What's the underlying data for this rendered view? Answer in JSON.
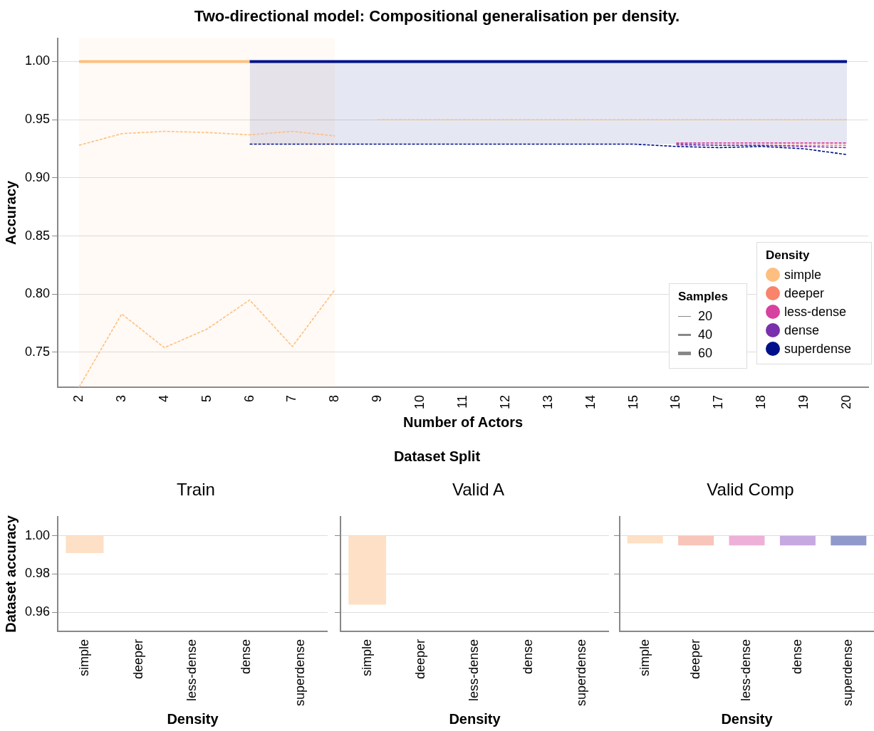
{
  "chart_data": [
    {
      "type": "line",
      "title": "Two-directional model: Compositional generalisation per density.",
      "xlabel": "Number of Actors",
      "ylabel": "Accuracy",
      "legend_title": "Density",
      "legend": "bottom right",
      "grid": "y",
      "marker": "none",
      "xlim": [
        1.5,
        20.5
      ],
      "xticks": [
        2,
        3,
        4,
        5,
        6,
        7,
        8,
        9,
        10,
        11,
        12,
        13,
        14,
        15,
        16,
        17,
        18,
        19,
        20
      ],
      "ylim": [
        0.72,
        1.02
      ],
      "yticks": [
        {
          "value": 0.75,
          "label": "0.75"
        },
        {
          "value": 0.8,
          "label": "0.80"
        },
        {
          "value": 0.85,
          "label": "0.85"
        },
        {
          "value": 0.9,
          "label": "0.90"
        },
        {
          "value": 0.95,
          "label": "0.95"
        },
        {
          "value": 1,
          "label": "1.00"
        }
      ],
      "bands": [
        {
          "axis": "x",
          "from": 2,
          "to": 8,
          "color": "#fdbf80"
        }
      ],
      "annotations": [
        "Samples",
        "20",
        "40",
        "60"
      ],
      "series": [
        {
          "name": "simple",
          "color": "#fdbf80",
          "line_style": "solid",
          "x": [
            2,
            3,
            4,
            5,
            6
          ],
          "values": [
            1,
            1,
            1,
            1,
            1
          ]
        },
        {
          "color": "#fdbf80",
          "line_style": "dashed",
          "x": [
            2,
            3,
            4,
            5,
            6,
            7,
            8
          ],
          "values": [
            0.928,
            0.938,
            0.94,
            0.939,
            0.937,
            0.94,
            0.936
          ]
        },
        {
          "color": "#fdbf80",
          "line_style": "dashed",
          "x": [
            9,
            10,
            11,
            12,
            13,
            14,
            15,
            16,
            17,
            18,
            19,
            20
          ],
          "values": [
            0.95,
            0.95,
            0.95,
            0.95,
            0.95,
            0.95,
            0.95,
            0.95,
            0.95,
            0.95,
            0.95,
            0.95
          ]
        },
        {
          "color": "#fdbf80",
          "line_style": "dashed",
          "x": [
            2,
            3,
            4,
            5,
            6,
            7,
            8
          ],
          "values": [
            0.72,
            0.783,
            0.754,
            0.77,
            0.795,
            0.755,
            0.804
          ]
        },
        {
          "name": "deeper",
          "color": "#f8846b",
          "line_style": "dashed",
          "x": [
            16,
            17,
            18,
            19,
            20
          ],
          "values": [
            0.928,
            0.928,
            0.928,
            0.928,
            0.928
          ]
        },
        {
          "name": "less-dense",
          "color": "#d6429f",
          "line_style": "dashed",
          "x": [
            16,
            17,
            18,
            19,
            20
          ],
          "values": [
            0.93,
            0.93,
            0.93,
            0.93,
            0.93
          ]
        },
        {
          "name": "dense",
          "color": "#7a2fac",
          "line_style": "dashed",
          "x": [
            16,
            17,
            18,
            19,
            20
          ],
          "values": [
            0.929,
            0.928,
            0.928,
            0.927,
            0.926
          ]
        },
        {
          "color": "#00108a",
          "line_style": "dashed",
          "x": [
            6,
            7,
            8,
            9,
            10,
            11,
            12,
            13,
            14,
            15,
            16,
            17,
            18,
            19,
            20
          ],
          "values": [
            0.929,
            0.929,
            0.929,
            0.929,
            0.929,
            0.929,
            0.929,
            0.929,
            0.929,
            0.929,
            0.927,
            0.926,
            0.927,
            0.925,
            0.92
          ]
        },
        {
          "name": "superdense",
          "color": "#00108a",
          "line_style": "solid",
          "x": [
            6,
            7,
            8,
            9,
            10,
            11,
            12,
            13,
            14,
            15,
            16,
            17,
            18,
            19,
            20
          ],
          "values": [
            1,
            1,
            1,
            1,
            1,
            1,
            1,
            1,
            1,
            1,
            1,
            1,
            1,
            1,
            1
          ],
          "lower": [
            0.929,
            0.929,
            0.929,
            0.929,
            0.929,
            0.929,
            0.929,
            0.929,
            0.929,
            0.929,
            0.929,
            0.929,
            0.929,
            0.929,
            0.929
          ],
          "upper": [
            1,
            1,
            1,
            1,
            1,
            1,
            1,
            1,
            1,
            1,
            1,
            1,
            1,
            1,
            1
          ]
        }
      ]
    },
    {
      "type": "bar",
      "title": "Train",
      "xlabel": "Density",
      "ylabel": "Dataset accuracy",
      "grid": "y",
      "annotations": [
        "Dataset Split"
      ],
      "categories": [
        "simple",
        "deeper",
        "less-dense",
        "dense",
        "superdense"
      ],
      "values": [
        0.009,
        null,
        null,
        null,
        null
      ],
      "base": [
        0.991,
        null,
        null,
        null,
        null
      ],
      "colors": [
        "#fde0c5",
        "#f9c4b9",
        "#eeb0d8",
        "#c7a9e2",
        "#8f9acb"
      ],
      "ylim": [
        0.95,
        1.01
      ],
      "yticks": [
        {
          "value": 0.96,
          "label": "0.96"
        },
        {
          "value": 0.98,
          "label": "0.98"
        },
        {
          "value": 1,
          "label": "1.00"
        }
      ]
    },
    {
      "type": "bar",
      "title": "Valid A",
      "xlabel": "Density",
      "grid": "y",
      "tick_labels": "x",
      "categories": [
        "simple",
        "deeper",
        "less-dense",
        "dense",
        "superdense"
      ],
      "values": [
        0.036,
        null,
        null,
        null,
        null
      ],
      "base": [
        0.964,
        null,
        null,
        null,
        null
      ],
      "colors": [
        "#fde0c5",
        "#f9c4b9",
        "#eeb0d8",
        "#c7a9e2",
        "#8f9acb"
      ],
      "ylim": [
        0.95,
        1.01
      ],
      "yticks": [
        {
          "value": 0.96,
          "label": null
        },
        {
          "value": 0.98,
          "label": null
        },
        {
          "value": 1,
          "label": null
        }
      ]
    },
    {
      "type": "bar",
      "title": "Valid Comp",
      "xlabel": "Density",
      "grid": "y",
      "tick_labels": "x",
      "categories": [
        "simple",
        "deeper",
        "less-dense",
        "dense",
        "superdense"
      ],
      "values": [
        0.004,
        0.005,
        0.005,
        0.005,
        0.005
      ],
      "base": [
        0.996,
        0.995,
        0.995,
        0.995,
        0.995
      ],
      "colors": [
        "#fde0c5",
        "#f9c4b9",
        "#eeb0d8",
        "#c7a9e2",
        "#8f9acb"
      ],
      "ylim": [
        0.95,
        1.01
      ],
      "yticks": [
        {
          "value": 0.96,
          "label": null
        },
        {
          "value": 0.98,
          "label": null
        },
        {
          "value": 1,
          "label": null
        }
      ]
    }
  ]
}
